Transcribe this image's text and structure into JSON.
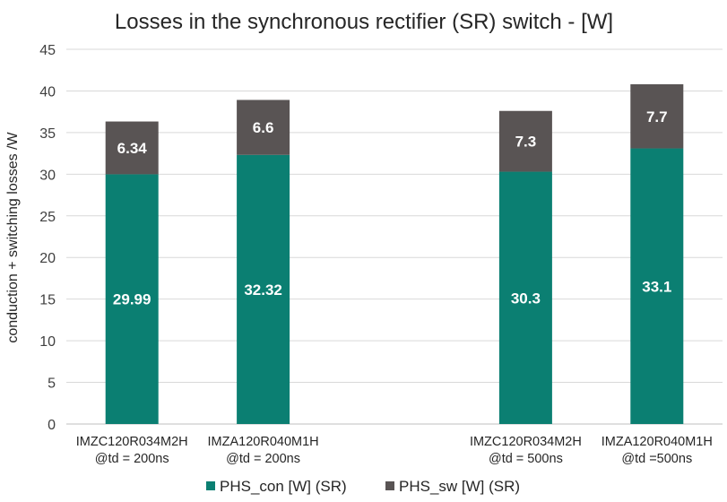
{
  "chart_data": {
    "type": "bar",
    "stacked": true,
    "title": "Losses in the synchronous rectifier (SR) switch - [W]",
    "ylabel": "conduction + switching  losses /W",
    "xlabel": "",
    "ylim": [
      0,
      45
    ],
    "yticks": [
      "0",
      "5",
      "10",
      "15",
      "20",
      "25",
      "30",
      "35",
      "40",
      "45"
    ],
    "ytick_values": [
      0,
      5,
      10,
      15,
      20,
      25,
      30,
      35,
      40,
      45
    ],
    "categories": [
      {
        "line1": "IMZC120R034M2H",
        "line2": "@td = 200ns",
        "slot": 0
      },
      {
        "line1": "IMZA120R040M1H",
        "line2": "@td = 200ns",
        "slot": 1
      },
      {
        "line1": "IMZC120R034M2H",
        "line2": "@td = 500ns",
        "slot": 3
      },
      {
        "line1": "IMZA120R040M1H",
        "line2": "@td =500ns",
        "slot": 4
      }
    ],
    "series": [
      {
        "name": "PHS_con [W] (SR)",
        "color": "#0b7f72",
        "values": [
          29.99,
          32.32,
          30.3,
          33.1
        ],
        "labels": [
          "29.99",
          "32.32",
          "30.3",
          "33.1"
        ]
      },
      {
        "name": "PHS_sw [W] (SR)",
        "color": "#595454",
        "values": [
          6.34,
          6.6,
          7.3,
          7.7
        ],
        "labels": [
          "6.34",
          "6.6",
          "7.3",
          "7.7"
        ]
      }
    ],
    "grid": true,
    "legend_position": "bottom"
  }
}
